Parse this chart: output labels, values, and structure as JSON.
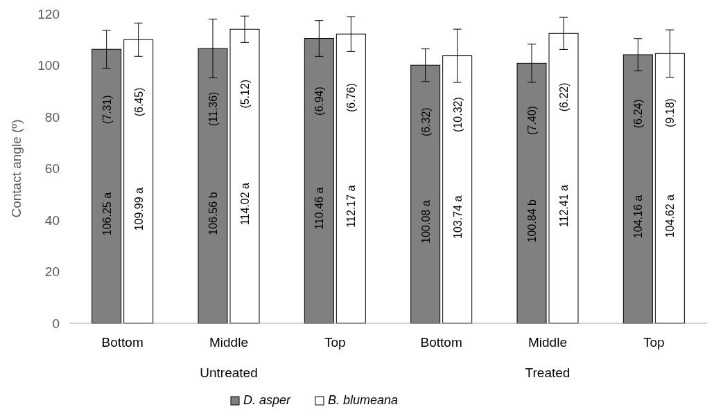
{
  "chart_data": {
    "type": "bar",
    "ylabel": "Contact angle (º)",
    "categories": [
      "Bottom",
      "Middle",
      "Top",
      "Bottom",
      "Middle",
      "Top"
    ],
    "series": [
      {
        "name": "D. asper",
        "color": "#808080",
        "values": [
          106.25,
          106.56,
          110.46,
          100.08,
          100.84,
          104.16
        ],
        "errors": [
          7.31,
          11.36,
          6.94,
          6.32,
          7.4,
          6.24
        ],
        "value_labels": [
          "106.25 a",
          "106.56 b",
          "110.46 a",
          "100.08 a",
          "100.84 b",
          "104.16 a"
        ]
      },
      {
        "name": "B. blumeana",
        "color": "#ffffff",
        "values": [
          109.99,
          114.02,
          112.17,
          103.74,
          112.41,
          104.62
        ],
        "errors": [
          6.45,
          5.12,
          6.76,
          10.32,
          6.22,
          9.18
        ],
        "value_labels": [
          "109.99 a",
          "114.02 a",
          "112.17 a",
          "103.74 a",
          "112.41 a",
          "104.62 a"
        ]
      }
    ],
    "annotations": [
      "Untreated",
      "Treated",
      "(7.31)",
      "(6.45)",
      "(11.36)",
      "(5.12)",
      "(6.94)",
      "(6.76)",
      "(6.32)",
      "(10.32)",
      "(7.40)",
      "(6.22)",
      "(6.24)",
      "(9.18)"
    ],
    "ylim": [
      0,
      120
    ],
    "yticks": [
      0,
      20,
      40,
      60,
      80,
      100,
      120
    ],
    "grid": false,
    "legend": "bottom"
  }
}
